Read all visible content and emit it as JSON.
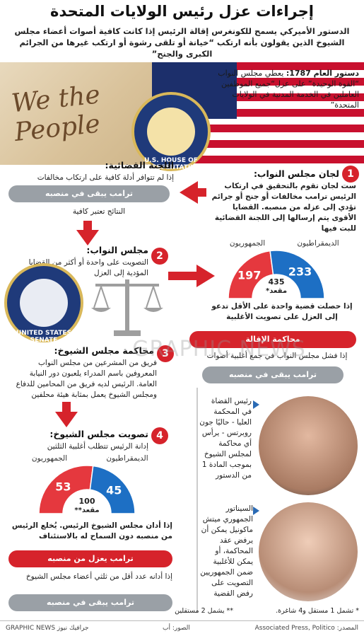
{
  "title": "إجراءات عزل رئيس الولايات المتحدة",
  "intro": "الدستور الأميركي يسمح للكونغرس إقالة الرئيس إذا كانت كافية أصوات أعضاء مجلس الشيوخ الذين يقولون بأنه ارتكب “خيانة أو تلقى رشوة أو ارتكب غيرها من الجرائم الكبرى والجنح”",
  "lead": {
    "bold": "دستور العام 1787:",
    "text": "يعطي مجلس النواب “القوة الوحيدة” على عزل“جميع الموظفين العاملين في الخدمة المدنية في الولايات المتحدة”"
  },
  "decor": {
    "we_the_people": "We the People",
    "house_seal": "U.S. HOUSE OF REPRESENTATIVES",
    "senate_seal": "UNITED STATES SENATE",
    "watermark": "GRAPHIC NEWS"
  },
  "step1": {
    "number": "1",
    "heading": "لجان مجلس النواب:",
    "text": "ست لجان تقوم بالتحقيق في ارتكاب الرئيس ترامب مخالفات أو جنح أو جرائم تؤدي إلى عزله من منصبه. القضايا الأقوى يتم إرسالها إلى اللجنة القضائية للبت فيها"
  },
  "judiciary": {
    "heading": "اللجنة القضائية:",
    "text": "إذا لم تتوافر أدلة كافية على ارتكاب مخالفات",
    "stays_pill": "ترامب يبقى في منصبه",
    "results": "النتائج تعتبر كافية"
  },
  "step2": {
    "number": "2",
    "heading": "مجلس النواب:",
    "text": "التصويت على واحدة أو أكثر من القضايا المؤدية إلى العزل"
  },
  "house_vote": {
    "dem_label": "الديمقراطيون",
    "rep_label": "الجمهوريون",
    "dem_seats": 233,
    "rep_seats": 197,
    "total": "435",
    "total_label": "مقعد*",
    "pass_text": "إذا حصلت قضية واحدة على الأقل تدعو إلى العزل على تصويت الأغلبية",
    "trial_pill": "محاكمة الإقالة",
    "fail_text": "إذا فشل مجلس النواب في جمع أغلبية أصوات",
    "stays_pill": "ترامب يبقى في منصبه"
  },
  "step3": {
    "number": "3",
    "heading": "محاكمة مجلس الشيوخ:",
    "text": "فريق من المشرعين من مجلس النواب المعروفين باسم المدراء يلعبون دور النيابة العامة. الرئيس لديه فريق من المحامين للدفاع ومجلس الشيوخ يعمل بمثابة هيئة محلفين"
  },
  "step4": {
    "number": "4",
    "heading": "تصويت مجلس الشيوخ:",
    "text": "إدانة الرئيس تتطلب أغلبية الثلثين"
  },
  "senate_vote": {
    "dem_label": "الديمقراطيون",
    "rep_label": "الجمهوريون",
    "dem_seats": 45,
    "rep_seats": 53,
    "total": "100",
    "total_label": "مقعد**",
    "convict_text": "إذا أدان مجلس الشيوخ الرئيس. يُخلع الرئيس من منصبه دون السماح له بالاستئناف",
    "removed_pill": "ترامب يعزل من منصبه",
    "acquit_text": "إذا أدانه عدد أقل من ثلثي أعضاء مجلس الشيوخ",
    "stays_pill": "ترامب يبقى في منصبه"
  },
  "roberts": {
    "text": "رئيس القضاة في المحكمة العليا - حاليًا جون روبرتس - يرأس أي محاكمة لمجلس الشيوخ بموجب المادة 1 من الدستور"
  },
  "mcconnell": {
    "text": "السيناتور الجمهوري ميتش ماكونيل يمكن أن يرفض عقد المحاكمة، أو يمكن للأغلبية ضمن الجمهوريين التصويت على رفض القضية"
  },
  "footnotes": {
    "one": "* تشمل 1 مستقل و4 شاغرة.",
    "two": "** يشمل 2 مستقلين"
  },
  "footer": {
    "source": "المصدر: Associated Press, Politico",
    "photos": "الصور: أب",
    "credit": "GRAPHIC NEWS جرافيك نيوز"
  },
  "colors": {
    "accent": "#d6232b",
    "democrat": "#1d6fc4",
    "republican": "#e5383e",
    "pill_gray": "#9aa0a6"
  },
  "icons": [
    "arrow-left-icon",
    "arrow-right-icon",
    "arrow-down-icon",
    "scales-icon",
    "triangle-bullet-icon",
    "seal-icon"
  ]
}
